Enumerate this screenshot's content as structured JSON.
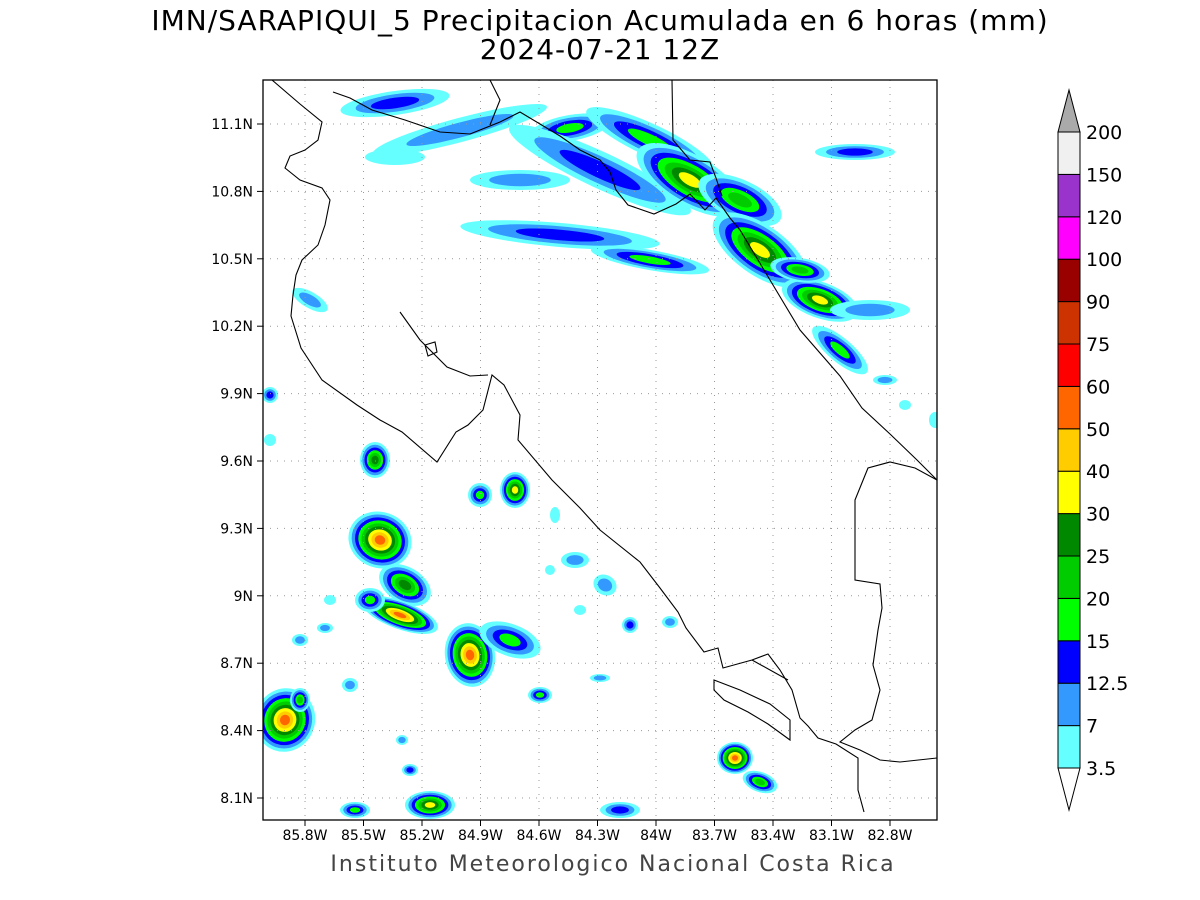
{
  "title": {
    "line1": "IMN/SARAPIQUI_5 Precipitacion Acumulada en 6 horas (mm)",
    "line2": "2024-07-21 12Z"
  },
  "footer": "Instituto Meteorologico Nacional Costa Rica",
  "map": {
    "lat_labels": [
      "11.1N",
      "10.8N",
      "10.5N",
      "10.2N",
      "9.9N",
      "9.6N",
      "9.3N",
      "9N",
      "8.7N",
      "8.4N",
      "8.1N"
    ],
    "lon_labels": [
      "85.8W",
      "85.5W",
      "85.2W",
      "84.9W",
      "84.6W",
      "84.3W",
      "84W",
      "83.7W",
      "83.4W",
      "83.1W",
      "82.8W"
    ]
  },
  "colorbar": {
    "labels": [
      "3.5",
      "7",
      "12.5",
      "15",
      "20",
      "25",
      "30",
      "40",
      "50",
      "60",
      "75",
      "90",
      "100",
      "120",
      "150",
      "200"
    ],
    "colors": [
      "#66ffff",
      "#3399ff",
      "#0000ff",
      "#00ff00",
      "#00cc00",
      "#008800",
      "#ffff00",
      "#ffcc00",
      "#ff6600",
      "#ff0000",
      "#cc3300",
      "#990000",
      "#ff00ff",
      "#9933cc",
      "#f0f0f0",
      "#aaaaaa"
    ]
  }
}
